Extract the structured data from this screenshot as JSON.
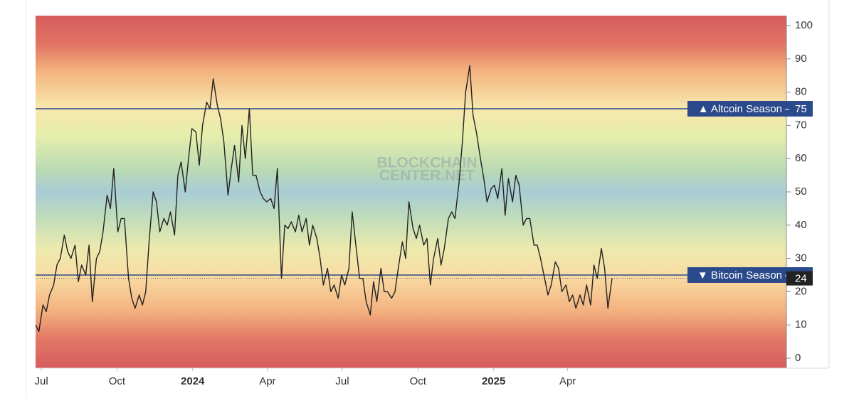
{
  "chart_data": {
    "type": "line",
    "watermark": [
      "BLOCKCHAIN",
      "CENTER.NET"
    ],
    "x": [
      -7,
      -3,
      2,
      6,
      10,
      15,
      19,
      23,
      28,
      32,
      36,
      41,
      45,
      49,
      54,
      58,
      62,
      67,
      71,
      75,
      80,
      84,
      88,
      93,
      97,
      101,
      106,
      110,
      114,
      119,
      123,
      127,
      131,
      136,
      140,
      144,
      149,
      153,
      157,
      162,
      166,
      170,
      175,
      179,
      183,
      188,
      192,
      196,
      201,
      205,
      209,
      214,
      218,
      222,
      227,
      231,
      235,
      240,
      244,
      248,
      253,
      257,
      261,
      266,
      270,
      274,
      279,
      283,
      287,
      292,
      296,
      300,
      304,
      309,
      313,
      317,
      322,
      326,
      330,
      335,
      339,
      343,
      348,
      352,
      356,
      361,
      365,
      369,
      374,
      378,
      382,
      387,
      391,
      395,
      400,
      404,
      408,
      413,
      417,
      421,
      426,
      430,
      434,
      439,
      443,
      447,
      452,
      456,
      460,
      465,
      469,
      473,
      477,
      482,
      486,
      490,
      495,
      499,
      503,
      508,
      512,
      516,
      521,
      525,
      529,
      534,
      538,
      542,
      547,
      551,
      555,
      560,
      564,
      568,
      573,
      577,
      581,
      586,
      590,
      594,
      599,
      603,
      607,
      612,
      616,
      620,
      625,
      629,
      633,
      638,
      642,
      646,
      650,
      655,
      659,
      663,
      668,
      672,
      676,
      681,
      685,
      689,
      694
    ],
    "series": [
      {
        "color": "#222222",
        "values": [
          10,
          8,
          16,
          14,
          19,
          22,
          28,
          30,
          37,
          32,
          30,
          34,
          23,
          28,
          25,
          34,
          17,
          30,
          32,
          38,
          49,
          45,
          57,
          38,
          42,
          42,
          24,
          18,
          15,
          19,
          16,
          20,
          35,
          50,
          47,
          38,
          42,
          40,
          44,
          37,
          55,
          59,
          50,
          60,
          69,
          68,
          58,
          70,
          77,
          75,
          84,
          76,
          72,
          65,
          49,
          57,
          64,
          53,
          70,
          60,
          75,
          55,
          55,
          50,
          48,
          47,
          48,
          45,
          57,
          24,
          40,
          39,
          41,
          38,
          43,
          38,
          42,
          34,
          40,
          36,
          30,
          22,
          27,
          20,
          22,
          18,
          25,
          22,
          27,
          44,
          35,
          24,
          24,
          17,
          13,
          23,
          17,
          27,
          20,
          20,
          18,
          20,
          27,
          35,
          30,
          47,
          39,
          36,
          40,
          34,
          36,
          22,
          30,
          36,
          28,
          33,
          42,
          44,
          42,
          53,
          65,
          80,
          88,
          73,
          68,
          60,
          54,
          47,
          51,
          52,
          48,
          57,
          43,
          54,
          47,
          55,
          52,
          40,
          42,
          42,
          34,
          34,
          30,
          24,
          19,
          22,
          29,
          27,
          20,
          22,
          17,
          19,
          15,
          19,
          16,
          22,
          16,
          28,
          24,
          33,
          27,
          15,
          24
        ]
      }
    ],
    "xlim": [
      -7,
      906
    ],
    "xticks": [
      {
        "value": 0,
        "label": "Jul"
      },
      {
        "value": 92,
        "label": "Oct"
      },
      {
        "value": 184,
        "label": "2024"
      },
      {
        "value": 275,
        "label": "Apr"
      },
      {
        "value": 366,
        "label": "Jul"
      },
      {
        "value": 458,
        "label": "Oct"
      },
      {
        "value": 550,
        "label": "2025"
      },
      {
        "value": 640,
        "label": "Apr"
      }
    ],
    "ylim": [
      -3,
      103
    ],
    "yticks": [
      0,
      10,
      20,
      30,
      40,
      50,
      60,
      70,
      80,
      90,
      100
    ],
    "annotations": [
      {
        "label": "▲ Altcoin Season",
        "value": 75,
        "color": "#2b4a8b"
      },
      {
        "label": "▼ Bitcoin Season",
        "value": 25,
        "color": "#2b4a8b"
      }
    ],
    "current_value": 24
  }
}
